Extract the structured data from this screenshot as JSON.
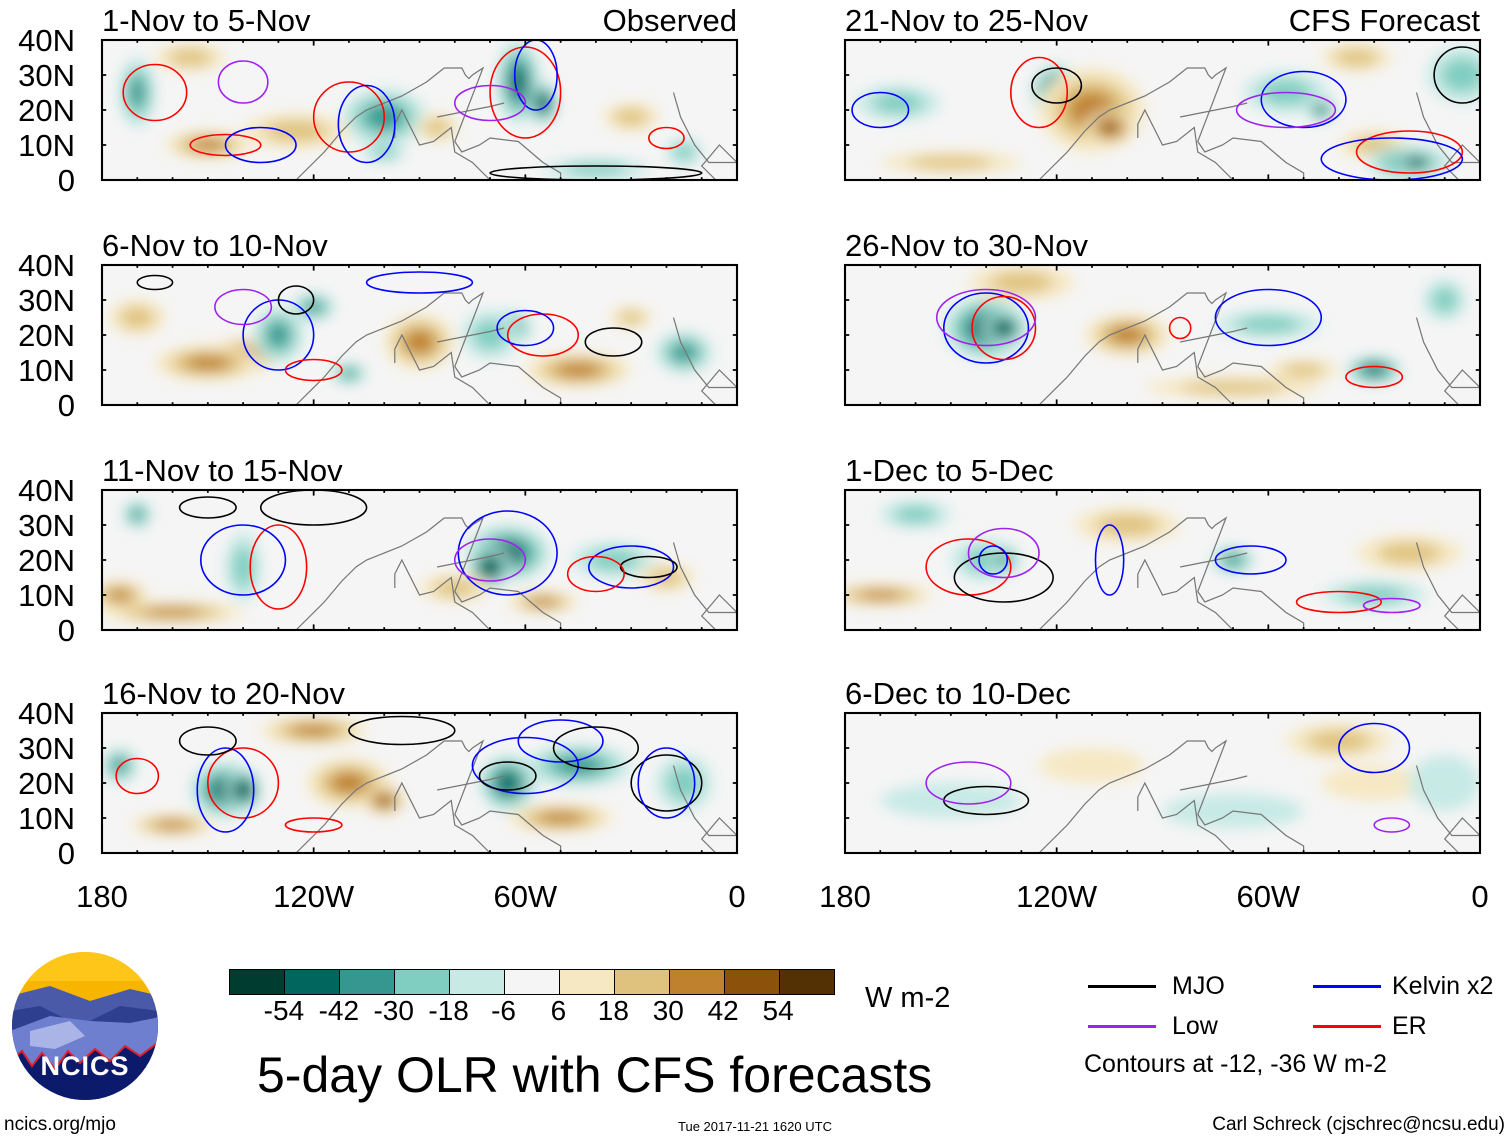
{
  "panels": [
    {
      "title": "1-Nov to 5-Nov",
      "label": "Observed"
    },
    {
      "title": "21-Nov to 25-Nov",
      "label": "CFS Forecast"
    },
    {
      "title": "6-Nov to 10-Nov",
      "label": ""
    },
    {
      "title": "26-Nov to 30-Nov",
      "label": ""
    },
    {
      "title": "11-Nov to 15-Nov",
      "label": ""
    },
    {
      "title": "1-Dec to 5-Dec",
      "label": ""
    },
    {
      "title": "16-Nov to 20-Nov",
      "label": ""
    },
    {
      "title": "6-Dec to 10-Dec",
      "label": ""
    }
  ],
  "lat_labels": [
    "40N",
    "30N",
    "20N",
    "10N",
    "0"
  ],
  "lon_labels": [
    "180",
    "120W",
    "60W",
    "0"
  ],
  "colorbar": {
    "colors": [
      "#003c30",
      "#01665e",
      "#35978f",
      "#80cdc1",
      "#c7eae5",
      "#f5f5f5",
      "#f6e8c3",
      "#dfc27d",
      "#bf812d",
      "#8c510a",
      "#543005"
    ],
    "labels": [
      "-54",
      "-42",
      "-30",
      "-18",
      "-6",
      "6",
      "18",
      "30",
      "42",
      "54"
    ],
    "units": "W m-2"
  },
  "title": "5-day OLR with CFS forecasts",
  "legend": {
    "items": [
      {
        "label": "MJO",
        "color": "#000000"
      },
      {
        "label": "Kelvin x2",
        "color": "#0000ff"
      },
      {
        "label": "Low",
        "color": "#a020f0"
      },
      {
        "label": "ER",
        "color": "#ff0000"
      }
    ],
    "note": "Contours at -12, -36 W m-2"
  },
  "logo": {
    "text": "NCICS"
  },
  "footer": {
    "url": "ncics.org/mjo",
    "timestamp": "Tue 2017-11-21 1620 UTC",
    "author": "Carl Schreck (cjschrec@ncsu.edu)"
  }
}
